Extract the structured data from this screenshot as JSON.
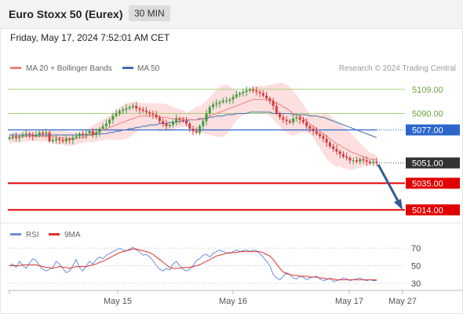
{
  "header": {
    "title": "Euro Stoxx 50 (Eurex)",
    "timeframe": "30 MIN",
    "datetime": "Friday, May 17, 2024 7:52:01 AM CET"
  },
  "legend": {
    "ma20_label": "MA 20 + Bollinger Bands",
    "ma50_label": "MA 50",
    "source": "Research © 2024 Trading Central",
    "rsi_label": "RSI",
    "rsi_ma_label": "9MA"
  },
  "colors": {
    "up": "#3e9c3e",
    "down": "#d63b3b",
    "ma20": "#f08080",
    "bollinger": "#fcd4d4",
    "ma50": "#3f6fa8",
    "resistance_green": "#a8cf7a",
    "pivot_blue": "#2a66cc",
    "support_red": "#e00000",
    "last_price": "#333333",
    "arrow": "#2f5b92",
    "rsi": "#6c8ed8",
    "rsi_ma": "#e03030"
  },
  "x_axis": {
    "ticks": [
      "May 15",
      "May 16",
      "May 17",
      "May 27"
    ]
  },
  "chart_data": [
    {
      "type": "line",
      "subtype": "candlestick",
      "title": "",
      "ylim": [
        5000,
        5120
      ],
      "levels": [
        {
          "label": "5109.00",
          "value": 5109,
          "kind": "resistance"
        },
        {
          "label": "5090.00",
          "value": 5090,
          "kind": "resistance"
        },
        {
          "label": "5077.00",
          "value": 5077,
          "kind": "pivot"
        },
        {
          "label": "5051.00",
          "value": 5051,
          "kind": "last_price"
        },
        {
          "label": "5035.00",
          "value": 5035,
          "kind": "support"
        },
        {
          "label": "5014.00",
          "value": 5014,
          "kind": "support"
        }
      ],
      "close_series": [
        5071,
        5072,
        5071,
        5072,
        5073,
        5074,
        5073,
        5072,
        5073,
        5075,
        5074,
        5075,
        5068,
        5069,
        5070,
        5069,
        5068,
        5070,
        5069,
        5071,
        5072,
        5074,
        5073,
        5074,
        5076,
        5073,
        5075,
        5078,
        5080,
        5082,
        5085,
        5088,
        5090,
        5092,
        5093,
        5094,
        5095,
        5096,
        5094,
        5093,
        5092,
        5091,
        5090,
        5089,
        5087,
        5084,
        5082,
        5080,
        5081,
        5083,
        5086,
        5085,
        5084,
        5082,
        5078,
        5076,
        5075,
        5080,
        5084,
        5090,
        5095,
        5097,
        5098,
        5099,
        5100,
        5100,
        5101,
        5103,
        5105,
        5106,
        5107,
        5108,
        5109,
        5108,
        5107,
        5106,
        5104,
        5102,
        5100,
        5096,
        5090,
        5087,
        5085,
        5084,
        5083,
        5086,
        5087,
        5085,
        5083,
        5080,
        5078,
        5076,
        5074,
        5072,
        5070,
        5067,
        5064,
        5062,
        5060,
        5058,
        5056,
        5055,
        5053,
        5053,
        5052,
        5054,
        5053,
        5052,
        5051,
        5052,
        5051
      ],
      "moving_averages": [
        {
          "name": "MA 20",
          "values": [
            5070,
            5071,
            5071,
            5071,
            5072,
            5072,
            5072,
            5072,
            5072,
            5072,
            5072,
            5072,
            5072,
            5072,
            5071,
            5071,
            5071,
            5070,
            5070,
            5070,
            5070,
            5071,
            5071,
            5072,
            5073,
            5074,
            5075,
            5076,
            5077,
            5078,
            5079,
            5080,
            5081,
            5082,
            5083,
            5084,
            5085,
            5086,
            5087,
            5088,
            5088,
            5088,
            5088,
            5088,
            5088,
            5087,
            5087,
            5087,
            5086,
            5086,
            5086,
            5086,
            5086,
            5085,
            5085,
            5085,
            5085,
            5085,
            5086,
            5087,
            5088,
            5089,
            5090,
            5091,
            5092,
            5093,
            5094,
            5095,
            5096,
            5097,
            5098,
            5099,
            5100,
            5101,
            5101,
            5101,
            5101,
            5101,
            5100,
            5099,
            5098,
            5097,
            5095,
            5094,
            5092,
            5090,
            5089,
            5088,
            5086,
            5084,
            5082,
            5080,
            5078,
            5076,
            5074,
            5072,
            5070,
            5068,
            5066,
            5065,
            5063,
            5062,
            5060,
            5059,
            5058,
            5057,
            5056,
            5055,
            5054,
            5054,
            5053
          ]
        },
        {
          "name": "MA 50",
          "values": [
            5073,
            5073,
            5073,
            5073,
            5073,
            5073,
            5073,
            5073,
            5073,
            5073,
            5073,
            5073,
            5073,
            5073,
            5073,
            5073,
            5073,
            5073,
            5073,
            5073,
            5073,
            5073,
            5073,
            5073,
            5073,
            5073,
            5074,
            5074,
            5074,
            5074,
            5075,
            5075,
            5076,
            5076,
            5077,
            5077,
            5078,
            5078,
            5079,
            5079,
            5080,
            5080,
            5081,
            5081,
            5081,
            5082,
            5082,
            5082,
            5083,
            5083,
            5083,
            5084,
            5084,
            5084,
            5085,
            5085,
            5085,
            5086,
            5086,
            5086,
            5087,
            5087,
            5088,
            5088,
            5088,
            5089,
            5089,
            5089,
            5090,
            5090,
            5090,
            5090,
            5091,
            5091,
            5091,
            5091,
            5091,
            5091,
            5091,
            5090,
            5090,
            5090,
            5090,
            5090,
            5090,
            5089,
            5089,
            5089,
            5089,
            5089,
            5088,
            5088,
            5088,
            5087,
            5087,
            5086,
            5085,
            5084,
            5083,
            5082,
            5081,
            5080,
            5079,
            5078,
            5077,
            5076,
            5075,
            5074,
            5073,
            5072,
            5071
          ]
        }
      ],
      "projection": {
        "from": 5051,
        "to": 5014
      }
    },
    {
      "type": "line",
      "title": "",
      "ylim": [
        20,
        80
      ],
      "y_ticks": [
        30,
        50,
        70
      ],
      "series": [
        {
          "name": "RSI",
          "values": [
            50,
            52,
            48,
            55,
            50,
            47,
            53,
            58,
            56,
            50,
            46,
            44,
            46,
            48,
            55,
            52,
            47,
            42,
            44,
            50,
            57,
            48,
            44,
            50,
            55,
            52,
            57,
            60,
            58,
            62,
            64,
            66,
            68,
            70,
            68,
            67,
            69,
            71,
            68,
            66,
            62,
            63,
            60,
            56,
            50,
            46,
            44,
            47,
            45,
            52,
            55,
            50,
            46,
            44,
            46,
            50,
            56,
            58,
            62,
            63,
            60,
            64,
            66,
            68,
            66,
            65,
            64,
            66,
            68,
            66,
            67,
            68,
            66,
            68,
            67,
            64,
            60,
            55,
            50,
            40,
            36,
            34,
            38,
            42,
            40,
            36,
            35,
            38,
            37,
            34,
            36,
            37,
            38,
            35,
            33,
            34,
            36,
            32,
            33,
            34,
            36,
            35,
            33,
            34,
            35,
            36,
            34,
            33,
            34,
            33,
            33
          ]
        },
        {
          "name": "9MA",
          "values": [
            50,
            50,
            50,
            50,
            51,
            51,
            51,
            51,
            51,
            50,
            49,
            48,
            48,
            47,
            48,
            49,
            48,
            48,
            47,
            48,
            49,
            49,
            49,
            49,
            50,
            51,
            52,
            54,
            55,
            57,
            59,
            61,
            63,
            65,
            66,
            67,
            68,
            69,
            69,
            68,
            67,
            66,
            65,
            63,
            60,
            57,
            54,
            51,
            48,
            47,
            47,
            47,
            48,
            48,
            48,
            49,
            50,
            51,
            53,
            55,
            57,
            59,
            61,
            62,
            63,
            64,
            65,
            65,
            65,
            66,
            66,
            66,
            66,
            66,
            66,
            66,
            65,
            63,
            61,
            57,
            52,
            47,
            43,
            41,
            40,
            39,
            39,
            38,
            38,
            38,
            37,
            37,
            37,
            36,
            36,
            35,
            35,
            35,
            34,
            34,
            34,
            34,
            34,
            34,
            34,
            34,
            34,
            34,
            34,
            34,
            34
          ]
        }
      ]
    }
  ]
}
